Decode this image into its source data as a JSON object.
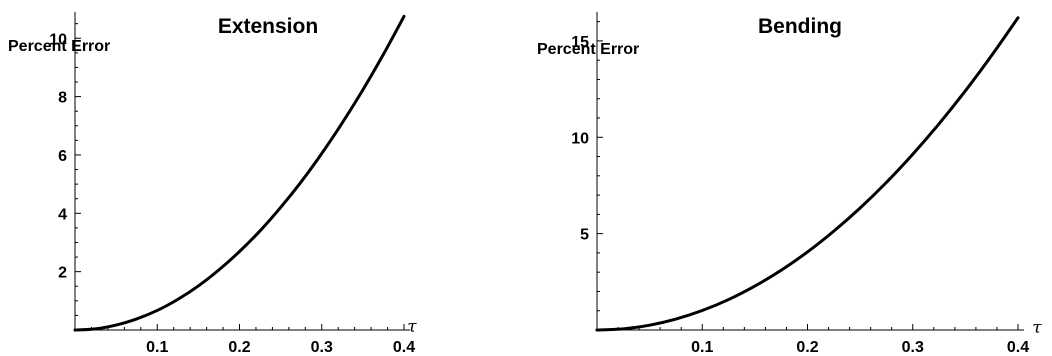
{
  "chart_data": [
    {
      "type": "line",
      "title": "Extension",
      "ylabel": "Percent Error",
      "xlabel": "τ",
      "xlim": [
        0,
        0.4
      ],
      "ylim": [
        0,
        10.9
      ],
      "x_ticks": [
        0.1,
        0.2,
        0.3,
        0.4
      ],
      "x_tick_labels": [
        "0.1",
        "0.2",
        "0.3",
        "0.4"
      ],
      "y_ticks": [
        2,
        4,
        6,
        8,
        10
      ],
      "y_tick_labels": [
        "2",
        "4",
        "6",
        "8",
        "10"
      ],
      "grid": false,
      "series": [
        {
          "x": [
            0,
            0.025,
            0.05,
            0.075,
            0.1,
            0.125,
            0.15,
            0.175,
            0.2,
            0.225,
            0.25,
            0.275,
            0.3,
            0.325,
            0.35,
            0.375,
            0.4
          ],
          "values": [
            0,
            0.04,
            0.17,
            0.38,
            0.67,
            1.05,
            1.51,
            2.06,
            2.69,
            3.4,
            4.2,
            5.08,
            6.05,
            7.1,
            8.23,
            9.45,
            10.75
          ]
        }
      ]
    },
    {
      "type": "line",
      "title": "Bending",
      "ylabel": "Percent Error",
      "xlabel": "τ",
      "xlim": [
        0,
        0.4
      ],
      "ylim": [
        0,
        16.5
      ],
      "x_ticks": [
        0.1,
        0.2,
        0.3,
        0.4
      ],
      "x_tick_labels": [
        "0.1",
        "0.2",
        "0.3",
        "0.4"
      ],
      "y_ticks": [
        5,
        10,
        15
      ],
      "y_tick_labels": [
        "5",
        "10",
        "15"
      ],
      "grid": false,
      "series": [
        {
          "x": [
            0,
            0.025,
            0.05,
            0.075,
            0.1,
            0.125,
            0.15,
            0.175,
            0.2,
            0.225,
            0.25,
            0.275,
            0.3,
            0.325,
            0.35,
            0.375,
            0.4
          ],
          "values": [
            0,
            0.06,
            0.25,
            0.57,
            1.01,
            1.58,
            2.28,
            3.1,
            4.05,
            5.13,
            6.33,
            7.66,
            9.12,
            10.7,
            12.41,
            14.25,
            16.2
          ]
        }
      ]
    }
  ]
}
